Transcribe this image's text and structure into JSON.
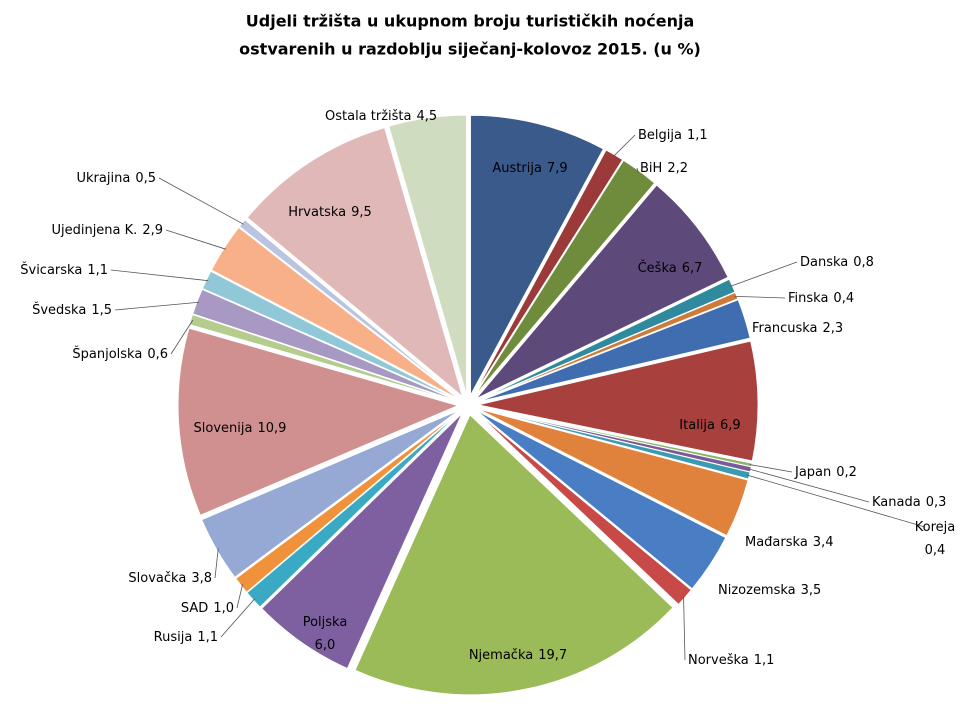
{
  "chart_data": {
    "type": "pie",
    "title": [
      "Udjeli tržišta u ukupnom broju turističkih noćenja",
      "ostvarenih u razdoblju siječanj-kolovoz 2015. (u %)"
    ],
    "categories": [
      "Austrija",
      "Belgija",
      "BiH",
      "Češka",
      "Danska",
      "Finska",
      "Francuska",
      "Italija",
      "Japan",
      "Kanada",
      "Koreja",
      "Mađarska",
      "Nizozemska",
      "Norveška",
      "Njemačka",
      "Poljska",
      "Rusija",
      "SAD",
      "Slovačka",
      "Slovenija",
      "Španjolska",
      "Švedska",
      "Švicarska",
      "Ujedinjena K.",
      "Ukrajina",
      "Hrvatska",
      "Ostala tržišta"
    ],
    "values": [
      7.9,
      1.1,
      2.2,
      6.7,
      0.8,
      0.4,
      2.3,
      6.9,
      0.2,
      0.3,
      0.4,
      3.4,
      3.5,
      1.1,
      19.7,
      6.0,
      1.1,
      1.0,
      3.8,
      10.9,
      0.6,
      1.5,
      1.1,
      2.9,
      0.5,
      9.5,
      4.5
    ],
    "value_labels": [
      "7,9",
      "1,1",
      "2,2",
      "6,7",
      "0,8",
      "0,4",
      "2,3",
      "6,9",
      "0,2",
      "0,3",
      "0,4",
      "3,4",
      "3,5",
      "1,1",
      "19,7",
      "6,0",
      "1,1",
      "1,0",
      "3,8",
      "10,9",
      "0,6",
      "1,5",
      "1,1",
      "2,9",
      "0,5",
      "9,5",
      "4,5"
    ],
    "colors": [
      "#3a5a8c",
      "#9b3a38",
      "#6e8c3c",
      "#5e4a7a",
      "#2e8a9c",
      "#d07a3a",
      "#3f6db0",
      "#a8403e",
      "#8cb464",
      "#7a5a9c",
      "#3a9ab0",
      "#e0823c",
      "#4a7ec4",
      "#c84a48",
      "#9bbb59",
      "#7e60a0",
      "#3aaac4",
      "#f0923c",
      "#95a9d4",
      "#d09090",
      "#b4cc8c",
      "#a898c4",
      "#90c8d8",
      "#f8b088",
      "#b8c4e0",
      "#e0b8b8",
      "#d0dcc0"
    ]
  }
}
